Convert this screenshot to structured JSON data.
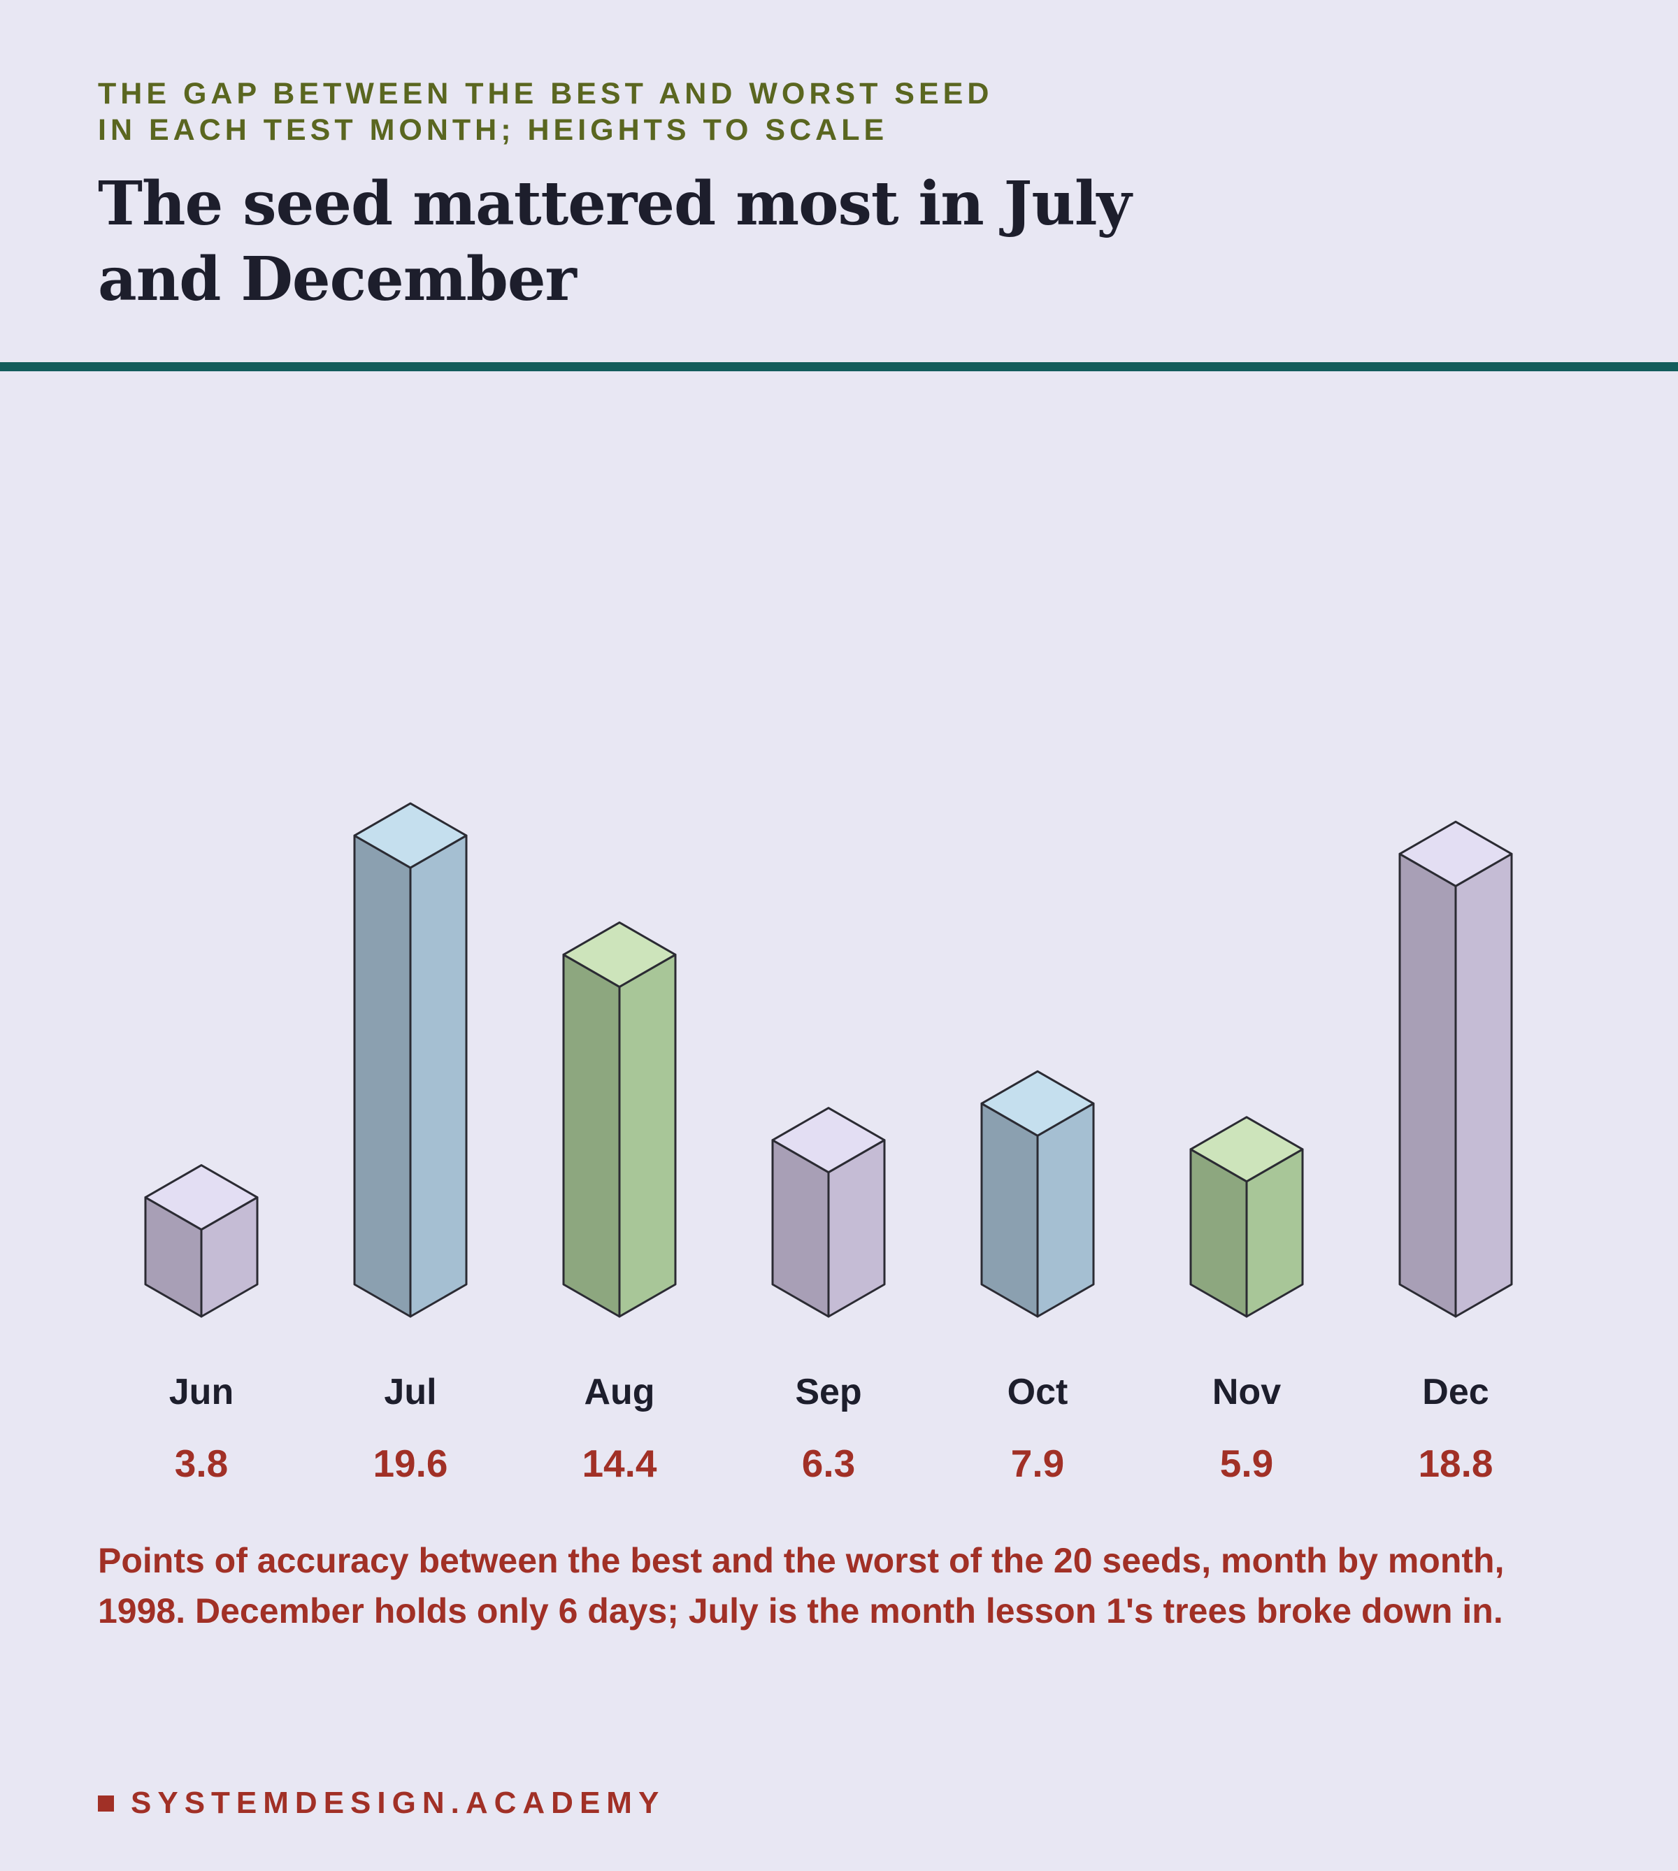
{
  "header": {
    "kicker_line1": "THE GAP BETWEEN THE BEST AND WORST SEED",
    "kicker_line2": "IN EACH TEST MONTH; HEIGHTS TO SCALE",
    "title_line1": "The seed mattered most in July",
    "title_line2": "and December"
  },
  "colors": {
    "background": "#e8e7f3",
    "rule": "#135c5b",
    "kicker": "#5a6620",
    "accent_red": "#a13026",
    "purple": {
      "top": "#e3def3",
      "left": "#a89fb6",
      "right": "#c5bcd5"
    },
    "blue": {
      "top": "#c5dfee",
      "left": "#8ba0b0",
      "right": "#a5bfd2"
    },
    "green": {
      "top": "#cde4bb",
      "left": "#8da77f",
      "right": "#a8c698"
    }
  },
  "chart_data": {
    "type": "bar",
    "title": "The seed mattered most in July and December",
    "subtitle": "THE GAP BETWEEN THE BEST AND WORST SEED IN EACH TEST MONTH; HEIGHTS TO SCALE",
    "xlabel": "",
    "ylabel": "",
    "categories": [
      "Jun",
      "Jul",
      "Aug",
      "Sep",
      "Oct",
      "Nov",
      "Dec"
    ],
    "values": [
      3.8,
      19.6,
      14.4,
      6.3,
      7.9,
      5.9,
      18.8
    ],
    "value_labels": [
      "3.8",
      "19.6",
      "14.4",
      "6.3",
      "7.9",
      "5.9",
      "18.8"
    ],
    "bar_colors": [
      "purple",
      "blue",
      "green",
      "purple",
      "blue",
      "green",
      "purple"
    ],
    "style": "3d-isometric-columns",
    "grid": false,
    "legend": "none"
  },
  "caption": "Points of accuracy between the best and the worst of the 20 seeds, month by month, 1998. December holds only 6 days; July is the month lesson 1's trees broke down in.",
  "footer": {
    "brand": "SYSTEMDESIGN.ACADEMY"
  }
}
